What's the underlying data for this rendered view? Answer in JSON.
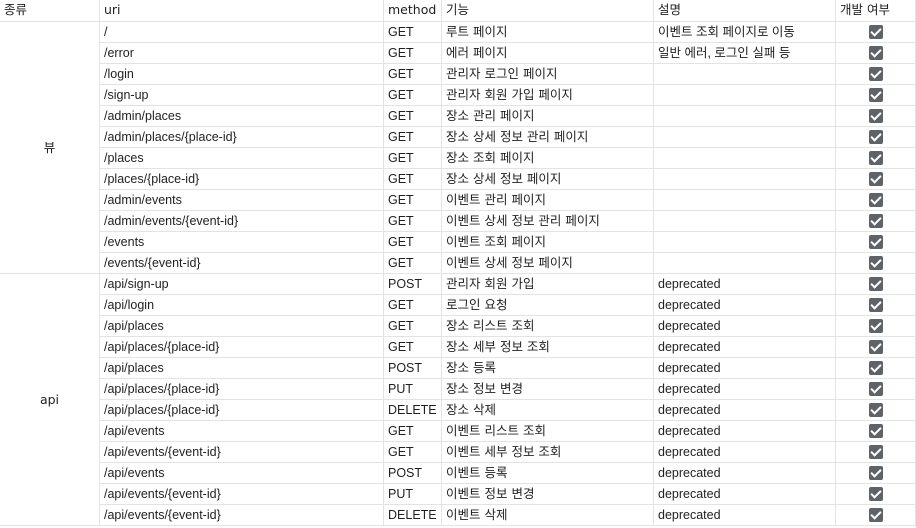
{
  "headers": [
    "종류",
    "uri",
    "method",
    "기능",
    "설명",
    "개발 여부"
  ],
  "groups": [
    {
      "label": "뷰",
      "start": 0,
      "count": 12
    },
    {
      "label": "api",
      "start": 12,
      "count": 12
    }
  ],
  "rows": [
    {
      "uri": "/",
      "method": "GET",
      "feature": "루트 페이지",
      "desc": "이벤트 조회 페이지로 이동",
      "done": true
    },
    {
      "uri": "/error",
      "method": "GET",
      "feature": "에러 페이지",
      "desc": "일반 에러, 로그인 실패 등",
      "done": true
    },
    {
      "uri": "/login",
      "method": "GET",
      "feature": "관리자 로그인 페이지",
      "desc": "",
      "done": true
    },
    {
      "uri": "/sign-up",
      "method": "GET",
      "feature": "관리자 회원 가입 페이지",
      "desc": "",
      "done": true
    },
    {
      "uri": "/admin/places",
      "method": "GET",
      "feature": "장소 관리 페이지",
      "desc": "",
      "done": true
    },
    {
      "uri": "/admin/places/{place-id}",
      "method": "GET",
      "feature": "장소 상세 정보 관리 페이지",
      "desc": "",
      "done": true
    },
    {
      "uri": "/places",
      "method": "GET",
      "feature": "장소 조회 페이지",
      "desc": "",
      "done": true
    },
    {
      "uri": "/places/{place-id}",
      "method": "GET",
      "feature": "장소 상세 정보 페이지",
      "desc": "",
      "done": true
    },
    {
      "uri": "/admin/events",
      "method": "GET",
      "feature": "이벤트 관리 페이지",
      "desc": "",
      "done": true
    },
    {
      "uri": "/admin/events/{event-id}",
      "method": "GET",
      "feature": "이벤트 상세 정보 관리 페이지",
      "desc": "",
      "done": true
    },
    {
      "uri": "/events",
      "method": "GET",
      "feature": "이벤트 조회 페이지",
      "desc": "",
      "done": true
    },
    {
      "uri": "/events/{event-id}",
      "method": "GET",
      "feature": "이벤트 상세 정보 페이지",
      "desc": "",
      "done": true
    },
    {
      "uri": "/api/sign-up",
      "method": "POST",
      "feature": "관리자 회원 가입",
      "desc": "deprecated",
      "done": true
    },
    {
      "uri": "/api/login",
      "method": "GET",
      "feature": "로그인 요청",
      "desc": "deprecated",
      "done": true
    },
    {
      "uri": "/api/places",
      "method": "GET",
      "feature": "장소 리스트 조회",
      "desc": "deprecated",
      "done": true
    },
    {
      "uri": "/api/places/{place-id}",
      "method": "GET",
      "feature": "장소 세부 정보 조회",
      "desc": "deprecated",
      "done": true
    },
    {
      "uri": "/api/places",
      "method": "POST",
      "feature": "장소 등록",
      "desc": "deprecated",
      "done": true
    },
    {
      "uri": "/api/places/{place-id}",
      "method": "PUT",
      "feature": "장소 정보 변경",
      "desc": "deprecated",
      "done": true
    },
    {
      "uri": "/api/places/{place-id}",
      "method": "DELETE",
      "feature": "장소 삭제",
      "desc": "deprecated",
      "done": true
    },
    {
      "uri": "/api/events",
      "method": "GET",
      "feature": "이벤트 리스트 조회",
      "desc": "deprecated",
      "done": true
    },
    {
      "uri": "/api/events/{event-id}",
      "method": "GET",
      "feature": "이벤트 세부 정보 조회",
      "desc": "deprecated",
      "done": true
    },
    {
      "uri": "/api/events",
      "method": "POST",
      "feature": "이벤트 등록",
      "desc": "deprecated",
      "done": true
    },
    {
      "uri": "/api/events/{event-id}",
      "method": "PUT",
      "feature": "이벤트 정보 변경",
      "desc": "deprecated",
      "done": true
    },
    {
      "uri": "/api/events/{event-id}",
      "method": "DELETE",
      "feature": "이벤트 삭제",
      "desc": "deprecated",
      "done": true
    }
  ]
}
